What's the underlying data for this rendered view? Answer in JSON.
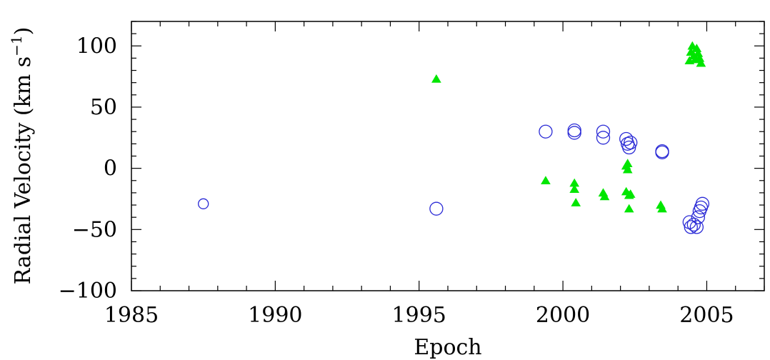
{
  "chart_data": {
    "type": "scatter",
    "title": "",
    "xlabel": "Epoch",
    "ylabel": "Radial Velocity (km s",
    "ylabel_superscript": "−1",
    "ylabel_close": ")",
    "xlim": [
      1985,
      2007
    ],
    "ylim": [
      -100,
      120
    ],
    "x_ticks": [
      1985,
      1990,
      1995,
      2000,
      2005
    ],
    "x_tick_labels": [
      "1985",
      "1990",
      "1995",
      "2000",
      "2005"
    ],
    "y_ticks": [
      -100,
      -50,
      0,
      50,
      100
    ],
    "y_tick_labels": [
      "−100",
      "−50",
      "0",
      "50",
      "100"
    ],
    "x_minor_step": 1,
    "y_minor_step": 10,
    "grid": false,
    "series": [
      {
        "marker": "open-circle",
        "color": "#2b2bd6",
        "points": [
          [
            1987.5,
            -29,
            7
          ],
          [
            1995.6,
            -33,
            9
          ],
          [
            1999.4,
            30,
            9
          ],
          [
            2000.4,
            31,
            9
          ],
          [
            2000.4,
            29,
            9
          ],
          [
            2001.4,
            30,
            9
          ],
          [
            2001.4,
            25,
            9
          ],
          [
            2002.2,
            24,
            9
          ],
          [
            2002.25,
            20,
            9
          ],
          [
            2002.3,
            17,
            9
          ],
          [
            2002.35,
            21,
            9
          ],
          [
            2003.45,
            14,
            9
          ],
          [
            2003.45,
            13,
            9
          ],
          [
            2004.4,
            -44,
            9
          ],
          [
            2004.45,
            -48,
            9
          ],
          [
            2004.55,
            -46,
            9
          ],
          [
            2004.65,
            -48,
            9
          ],
          [
            2004.7,
            -40,
            9
          ],
          [
            2004.75,
            -35,
            9
          ],
          [
            2004.8,
            -32,
            9
          ],
          [
            2004.85,
            -29,
            9
          ]
        ]
      },
      {
        "marker": "filled-triangle",
        "color": "#00e600",
        "points": [
          [
            1995.6,
            73
          ],
          [
            1999.4,
            -10
          ],
          [
            2000.4,
            -12
          ],
          [
            2000.4,
            -17
          ],
          [
            2000.45,
            -28
          ],
          [
            2001.4,
            -20
          ],
          [
            2001.45,
            -23
          ],
          [
            2002.2,
            2
          ],
          [
            2002.25,
            -1
          ],
          [
            2002.25,
            4
          ],
          [
            2002.2,
            -19
          ],
          [
            2002.3,
            -22
          ],
          [
            2002.35,
            -21
          ],
          [
            2002.3,
            -33
          ],
          [
            2003.4,
            -30
          ],
          [
            2003.45,
            -33
          ],
          [
            2004.4,
            88
          ],
          [
            2004.45,
            95
          ],
          [
            2004.5,
            100
          ],
          [
            2004.55,
            92
          ],
          [
            2004.6,
            89
          ],
          [
            2004.65,
            98
          ],
          [
            2004.7,
            94
          ],
          [
            2004.75,
            90
          ],
          [
            2004.8,
            86
          ]
        ]
      }
    ]
  }
}
